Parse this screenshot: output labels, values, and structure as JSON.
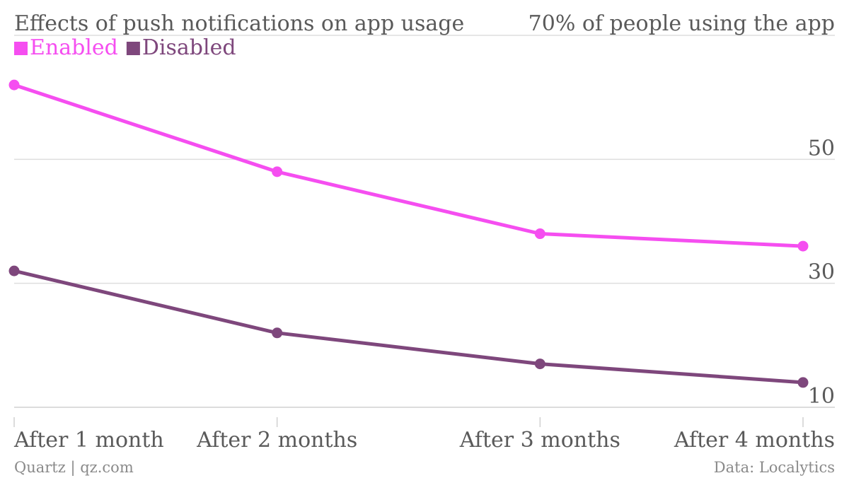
{
  "chart_data": {
    "type": "line",
    "title": "Effects of push notifications on app usage",
    "ylabel": "70% of people using the app",
    "source": "Data: Localytics",
    "credit": "Quartz | qz.com",
    "categories": [
      "After 1 month",
      "After 2 months",
      "After 3 months",
      "After 4 months"
    ],
    "x": [
      1,
      2,
      3,
      4
    ],
    "series": [
      {
        "name": "Enabled",
        "color": "#f54ef0",
        "values": [
          62,
          48,
          38,
          36
        ]
      },
      {
        "name": "Disabled",
        "color": "#7e477c",
        "values": [
          32,
          22,
          17,
          14
        ]
      }
    ],
    "yticks": [
      10,
      30,
      50,
      70
    ],
    "ytick_labels": [
      "10",
      "30",
      "50",
      ""
    ],
    "ylim": [
      10,
      70
    ],
    "xlim": [
      1,
      4
    ],
    "grid": true,
    "legend_position": "top-left"
  }
}
